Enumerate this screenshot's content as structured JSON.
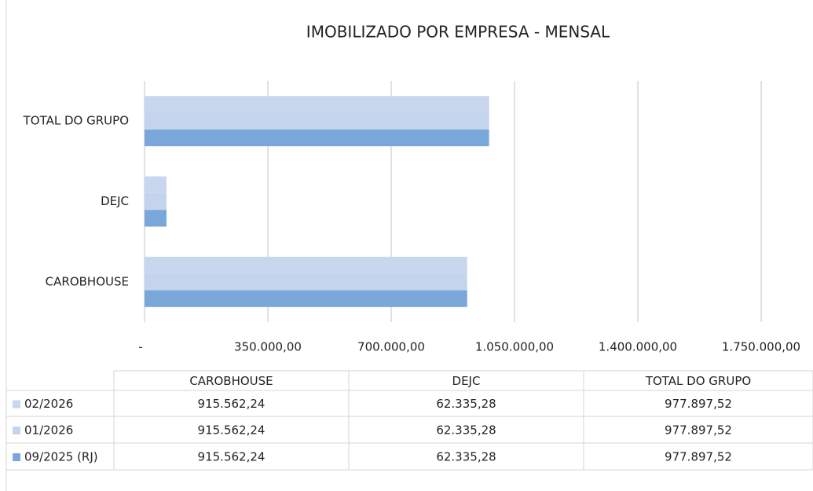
{
  "chart_data": {
    "type": "bar",
    "orientation": "horizontal",
    "title": "IMOBILIZADO POR EMPRESA - MENSAL",
    "categories": [
      "CAROBHOUSE",
      "DEJC",
      "TOTAL DO GRUPO"
    ],
    "series": [
      {
        "name": "02/2026",
        "color": "#c8d7ee",
        "values": [
          915562.24,
          62335.28,
          977897.52
        ],
        "value_labels": [
          "915.562,24",
          "62.335,28",
          "977.897,52"
        ]
      },
      {
        "name": "01/2026",
        "color": "#c4d4ec",
        "values": [
          915562.24,
          62335.28,
          977897.52
        ],
        "value_labels": [
          "915.562,24",
          "62.335,28",
          "977.897,52"
        ]
      },
      {
        "name": "09/2025 (RJ)",
        "color": "#7aa7d9",
        "values": [
          915562.24,
          62335.28,
          977897.52
        ],
        "value_labels": [
          "915.562,24",
          "62.335,28",
          "977.897,52"
        ]
      }
    ],
    "xlim": [
      0,
      1750000
    ],
    "xticks": [
      {
        "value": 0,
        "label": "-"
      },
      {
        "value": 350000,
        "label": "350.000,00"
      },
      {
        "value": 700000,
        "label": "700.000,00"
      },
      {
        "value": 1050000,
        "label": "1.050.000,00"
      },
      {
        "value": 1400000,
        "label": "1.400.000,00"
      },
      {
        "value": 1750000,
        "label": "1.750.000,00"
      }
    ],
    "grid": true
  }
}
